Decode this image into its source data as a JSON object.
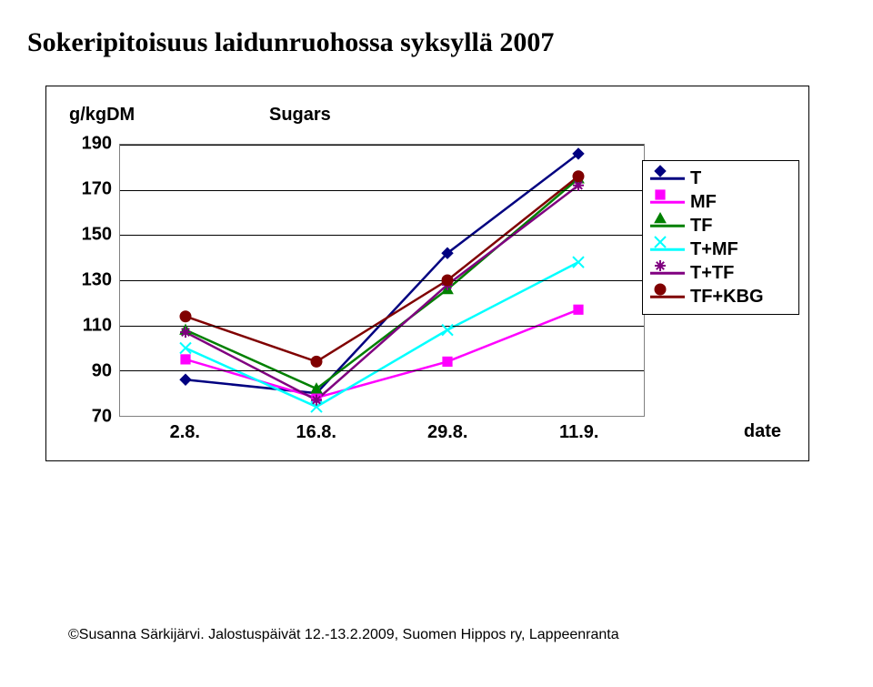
{
  "title": "Sokeripitoisuus laidunruohossa syksyllä 2007",
  "chart": {
    "type": "line",
    "ylabel": "g/kgDM",
    "title": "Sugars",
    "xlabel": "date",
    "ylim": [
      70,
      190
    ],
    "ytick_step": 20,
    "yticks": [
      190,
      170,
      150,
      130,
      110,
      90,
      70
    ],
    "categories": [
      "2.8.",
      "16.8.",
      "29.8.",
      "11.9."
    ],
    "background_color": "#ffffff",
    "grid_color": "#000000",
    "plot_border_color": "#808080",
    "line_width": 2.5,
    "marker_size": 12,
    "series": [
      {
        "name": "T",
        "color": "#000080",
        "marker": "diamond",
        "values": [
          86,
          80,
          142,
          186
        ]
      },
      {
        "name": "MF",
        "color": "#ff00ff",
        "marker": "square",
        "values": [
          95,
          78,
          94,
          117
        ]
      },
      {
        "name": "TF",
        "color": "#008000",
        "marker": "triangle",
        "values": [
          108,
          82,
          126,
          175
        ]
      },
      {
        "name": "T+MF",
        "color": "#00ffff",
        "marker": "x",
        "values": [
          100,
          74,
          108,
          138
        ]
      },
      {
        "name": "T+TF",
        "color": "#800080",
        "marker": "asterisk",
        "values": [
          107,
          77,
          128,
          172
        ]
      },
      {
        "name": "TF+KBG",
        "color": "#800000",
        "marker": "circle",
        "values": [
          114,
          94,
          130,
          176
        ]
      }
    ],
    "title_fontsize": 20,
    "label_fontsize": 20,
    "tick_fontsize": 20
  },
  "footer": "©Susanna Särkijärvi. Jalostuspäivät 12.-13.2.2009, Suomen Hippos ry, Lappeenranta"
}
